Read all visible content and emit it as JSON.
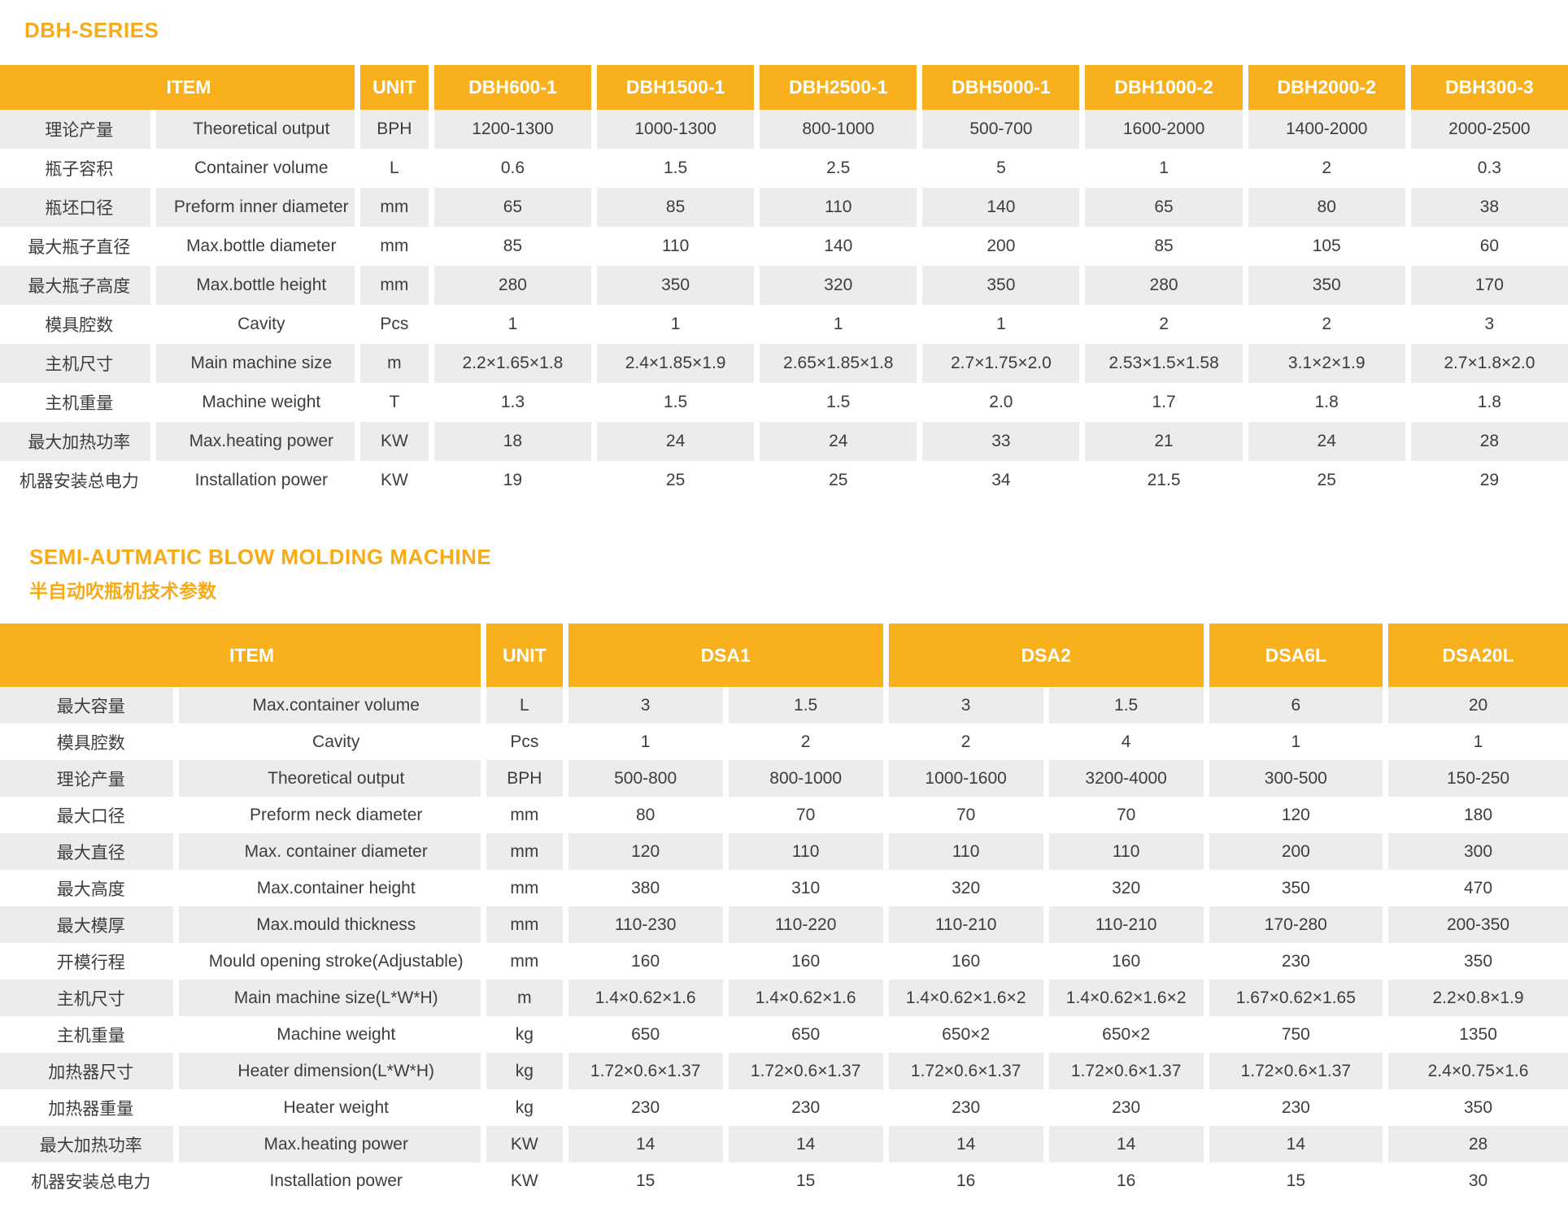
{
  "colors": {
    "accent_orange": "#F8B01C",
    "row_stripe_gray": "#EDECEC",
    "header_text": "#FFFFFF",
    "body_text": "#3D3D3D"
  },
  "tables": [
    {
      "title": "DBH-SERIES",
      "subtitle": "",
      "header": {
        "item": "ITEM",
        "unit": "UNIT",
        "models": [
          {
            "label": "DBH600-1",
            "span": 1
          },
          {
            "label": "DBH1500-1",
            "span": 1
          },
          {
            "label": "DBH2500-1",
            "span": 1
          },
          {
            "label": "DBH5000-1",
            "span": 1
          },
          {
            "label": "DBH1000-2",
            "span": 1
          },
          {
            "label": "DBH2000-2",
            "span": 1
          },
          {
            "label": "DBH300-3",
            "span": 1
          }
        ]
      },
      "rows": [
        {
          "cn": "理论产量",
          "en": "Theoretical output",
          "unit": "BPH",
          "values": [
            "1200-1300",
            "1000-1300",
            "800-1000",
            "500-700",
            "1600-2000",
            "1400-2000",
            "2000-2500"
          ]
        },
        {
          "cn": "瓶子容积",
          "en": "Container volume",
          "unit": "L",
          "values": [
            "0.6",
            "1.5",
            "2.5",
            "5",
            "1",
            "2",
            "0.3"
          ]
        },
        {
          "cn": "瓶坯口径",
          "en": "Preform inner diameter",
          "unit": "mm",
          "values": [
            "65",
            "85",
            "110",
            "140",
            "65",
            "80",
            "38"
          ]
        },
        {
          "cn": "最大瓶子直径",
          "en": "Max.bottle diameter",
          "unit": "mm",
          "values": [
            "85",
            "110",
            "140",
            "200",
            "85",
            "105",
            "60"
          ]
        },
        {
          "cn": "最大瓶子高度",
          "en": "Max.bottle height",
          "unit": "mm",
          "values": [
            "280",
            "350",
            "320",
            "350",
            "280",
            "350",
            "170"
          ]
        },
        {
          "cn": "模具腔数",
          "en": "Cavity",
          "unit": "Pcs",
          "values": [
            "1",
            "1",
            "1",
            "1",
            "2",
            "2",
            "3"
          ]
        },
        {
          "cn": "主机尺寸",
          "en": "Main machine size",
          "unit": "m",
          "values": [
            "2.2×1.65×1.8",
            "2.4×1.85×1.9",
            "2.65×1.85×1.8",
            "2.7×1.75×2.0",
            "2.53×1.5×1.58",
            "3.1×2×1.9",
            "2.7×1.8×2.0"
          ]
        },
        {
          "cn": "主机重量",
          "en": "Machine weight",
          "unit": "T",
          "values": [
            "1.3",
            "1.5",
            "1.5",
            "2.0",
            "1.7",
            "1.8",
            "1.8"
          ]
        },
        {
          "cn": "最大加热功率",
          "en": "Max.heating power",
          "unit": "KW",
          "values": [
            "18",
            "24",
            "24",
            "33",
            "21",
            "24",
            "28"
          ]
        },
        {
          "cn": "机器安装总电力",
          "en": "Installation power",
          "unit": "KW",
          "values": [
            "19",
            "25",
            "25",
            "34",
            "21.5",
            "25",
            "29"
          ]
        }
      ]
    },
    {
      "title": "SEMI-AUTMATIC BLOW MOLDING MACHINE",
      "subtitle": "半自动吹瓶机技术参数",
      "header": {
        "item": "ITEM",
        "unit": "UNIT",
        "models": [
          {
            "label": "DSA1",
            "span": 2
          },
          {
            "label": "DSA2",
            "span": 2
          },
          {
            "label": "DSA6L",
            "span": 1
          },
          {
            "label": "DSA20L",
            "span": 1
          }
        ]
      },
      "rows": [
        {
          "cn": "最大容量",
          "en": "Max.container volume",
          "unit": "L",
          "values": [
            "3",
            "1.5",
            "3",
            "1.5",
            "6",
            "20"
          ]
        },
        {
          "cn": "模具腔数",
          "en": "Cavity",
          "unit": "Pcs",
          "values": [
            "1",
            "2",
            "2",
            "4",
            "1",
            "1"
          ]
        },
        {
          "cn": "理论产量",
          "en": "Theoretical output",
          "unit": "BPH",
          "values": [
            "500-800",
            "800-1000",
            "1000-1600",
            "3200-4000",
            "300-500",
            "150-250"
          ]
        },
        {
          "cn": "最大口径",
          "en": "Preform neck diameter",
          "unit": "mm",
          "values": [
            "80",
            "70",
            "70",
            "70",
            "120",
            "180"
          ]
        },
        {
          "cn": "最大直径",
          "en": "Max. container diameter",
          "unit": "mm",
          "values": [
            "120",
            "110",
            "110",
            "110",
            "200",
            "300"
          ]
        },
        {
          "cn": "最大高度",
          "en": "Max.container height",
          "unit": "mm",
          "values": [
            "380",
            "310",
            "320",
            "320",
            "350",
            "470"
          ]
        },
        {
          "cn": "最大模厚",
          "en": "Max.mould thickness",
          "unit": "mm",
          "values": [
            "110-230",
            "110-220",
            "110-210",
            "110-210",
            "170-280",
            "200-350"
          ]
        },
        {
          "cn": "开模行程",
          "en": "Mould opening stroke(Adjustable)",
          "unit": "mm",
          "values": [
            "160",
            "160",
            "160",
            "160",
            "230",
            "350"
          ]
        },
        {
          "cn": "主机尺寸",
          "en": "Main machine size(L*W*H)",
          "unit": "m",
          "values": [
            "1.4×0.62×1.6",
            "1.4×0.62×1.6",
            "1.4×0.62×1.6×2",
            "1.4×0.62×1.6×2",
            "1.67×0.62×1.65",
            "2.2×0.8×1.9"
          ]
        },
        {
          "cn": "主机重量",
          "en": "Machine weight",
          "unit": "kg",
          "values": [
            "650",
            "650",
            "650×2",
            "650×2",
            "750",
            "1350"
          ]
        },
        {
          "cn": "加热器尺寸",
          "en": "Heater dimension(L*W*H)",
          "unit": "kg",
          "values": [
            "1.72×0.6×1.37",
            "1.72×0.6×1.37",
            "1.72×0.6×1.37",
            "1.72×0.6×1.37",
            "1.72×0.6×1.37",
            "2.4×0.75×1.6"
          ]
        },
        {
          "cn": "加热器重量",
          "en": "Heater weight",
          "unit": "kg",
          "values": [
            "230",
            "230",
            "230",
            "230",
            "230",
            "350"
          ]
        },
        {
          "cn": "最大加热功率",
          "en": "Max.heating power",
          "unit": "KW",
          "values": [
            "14",
            "14",
            "14",
            "14",
            "14",
            "28"
          ]
        },
        {
          "cn": "机器安装总电力",
          "en": "Installation power",
          "unit": "KW",
          "values": [
            "15",
            "15",
            "16",
            "16",
            "15",
            "30"
          ]
        }
      ]
    }
  ]
}
